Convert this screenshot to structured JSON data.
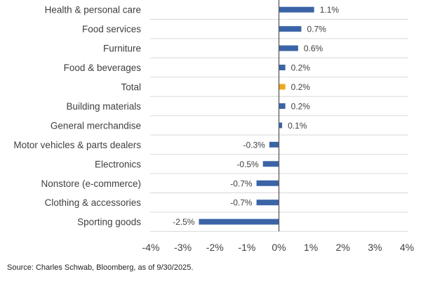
{
  "chart_data": {
    "type": "bar",
    "orientation": "horizontal",
    "categories": [
      "Health & personal care",
      "Food services",
      "Furniture",
      "Food & beverages",
      "Total",
      "Building materials",
      "General merchandise",
      "Motor vehicles & parts dealers",
      "Electronics",
      "Nonstore (e-commerce)",
      "Clothing & accessories",
      "Sporting goods"
    ],
    "values": [
      1.1,
      0.7,
      0.6,
      0.2,
      0.2,
      0.2,
      0.1,
      -0.3,
      -0.5,
      -0.7,
      -0.7,
      -2.5
    ],
    "data_labels": [
      "1.1%",
      "0.7%",
      "0.6%",
      "0.2%",
      "0.2%",
      "0.2%",
      "0.1%",
      "-0.3%",
      "-0.5%",
      "-0.7%",
      "-0.7%",
      "-2.5%"
    ],
    "highlight_category": "Total",
    "xlim": [
      -4,
      4
    ],
    "x_ticks": [
      -4,
      -3,
      -2,
      -1,
      0,
      1,
      2,
      3,
      4
    ],
    "x_tick_labels": [
      "-4%",
      "-3%",
      "-2%",
      "-1%",
      "0%",
      "1%",
      "2%",
      "3%",
      "4%"
    ],
    "grid": "horizontal separators",
    "colors": {
      "bar": "#3b64a6",
      "highlight": "#f0a818",
      "grid": "#d9d9d9",
      "zero_line": "#595959"
    }
  },
  "source": "Source: Charles Schwab, Bloomberg, as of 9/30/2025."
}
